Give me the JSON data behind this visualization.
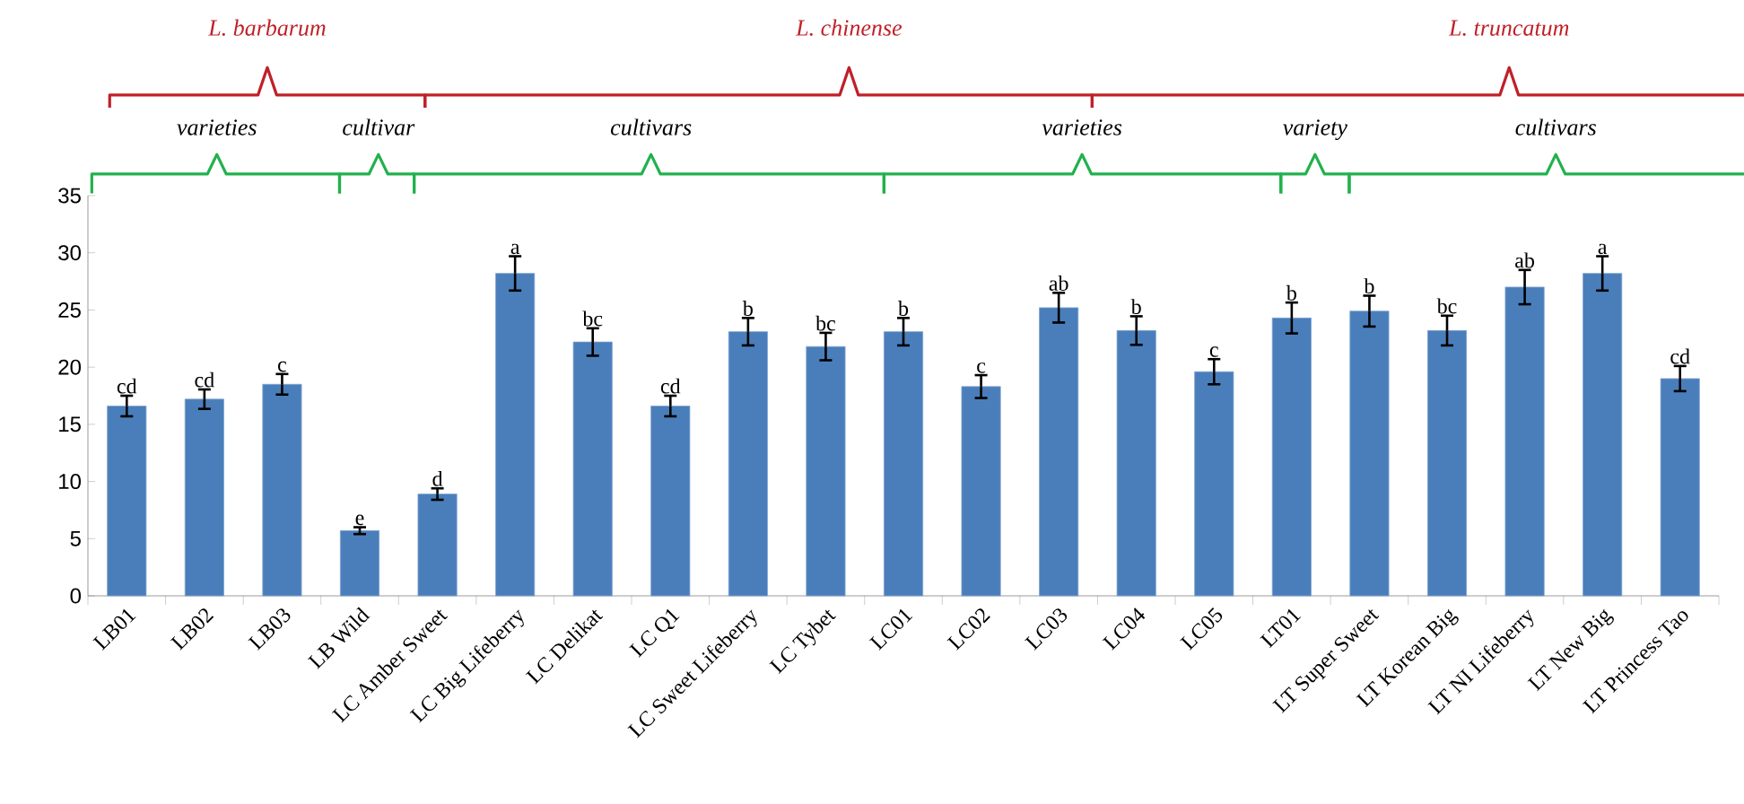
{
  "chart_data": {
    "type": "bar",
    "categories": [
      "LB01",
      "LB02",
      "LB03",
      "LB Wild",
      "LC Amber Sweet",
      "LC Big Lifeberry",
      "LC Delikat",
      "LC Q1",
      "LC Sweet Lifeberry",
      "LC Tybet",
      "LC01",
      "LC02",
      "LC03",
      "LC04",
      "LC05",
      "LT01",
      "LT Super Sweet",
      "LT Korean Big",
      "LT NI Lifeberry",
      "LT New Big",
      "LT Princess Tao"
    ],
    "values": [
      16.6,
      17.2,
      18.5,
      5.7,
      8.9,
      28.2,
      22.2,
      16.6,
      23.1,
      21.8,
      23.1,
      18.3,
      25.2,
      23.2,
      19.6,
      24.3,
      24.9,
      23.2,
      27.0,
      28.2,
      19.0
    ],
    "errors": [
      0.9,
      0.85,
      0.9,
      0.3,
      0.5,
      1.5,
      1.2,
      0.9,
      1.2,
      1.2,
      1.2,
      1.0,
      1.3,
      1.25,
      1.1,
      1.35,
      1.35,
      1.3,
      1.5,
      1.5,
      1.1
    ],
    "value_labels": [
      "cd",
      "cd",
      "c",
      "e",
      "d",
      "a",
      "bc",
      "cd",
      "b",
      "bc",
      "b",
      "c",
      "ab",
      "b",
      "c",
      "b",
      "b",
      "bc",
      "ab",
      "a",
      "cd"
    ],
    "color": "#4a7ebb",
    "ylim": [
      0,
      35
    ],
    "yticks": [
      0,
      5,
      10,
      15,
      20,
      25,
      30,
      35
    ],
    "annotations": [
      "L. barbarum",
      "L. chinense",
      "L. truncatum",
      "varieties",
      "cultivar",
      "cultivars",
      "varieties",
      "variety",
      "cultivars"
    ]
  }
}
